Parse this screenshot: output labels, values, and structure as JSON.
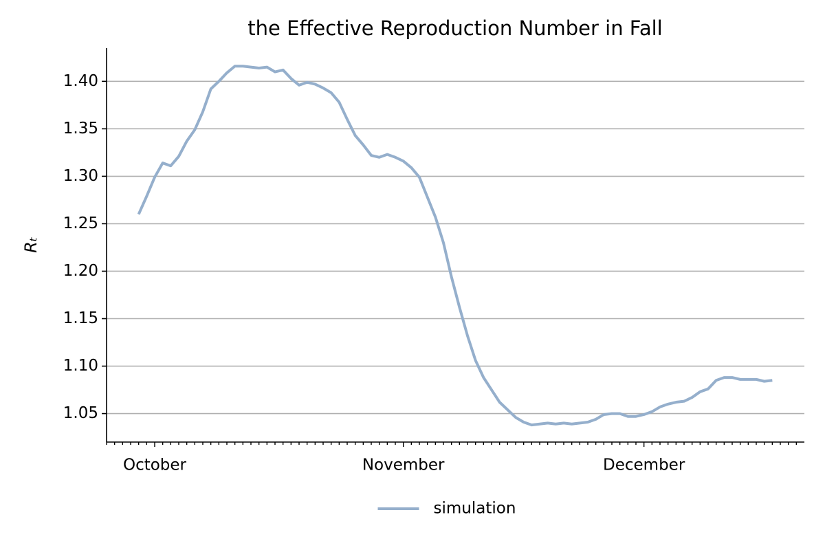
{
  "chart_data": {
    "type": "line",
    "title": "the Effective Reproduction Number in Fall",
    "y_label": "Rₜ",
    "categories": [
      null,
      null,
      null,
      null,
      null,
      null,
      "October",
      null,
      null,
      null,
      null,
      null,
      null,
      null,
      null,
      null,
      null,
      null,
      null,
      null,
      null,
      null,
      null,
      null,
      null,
      null,
      null,
      null,
      null,
      null,
      null,
      null,
      null,
      null,
      null,
      null,
      null,
      "November",
      null,
      null,
      null,
      null,
      null,
      null,
      null,
      null,
      null,
      null,
      null,
      null,
      null,
      null,
      null,
      null,
      null,
      null,
      null,
      null,
      null,
      null,
      null,
      null,
      null,
      null,
      null,
      null,
      null,
      "December",
      null,
      null,
      null,
      null,
      null,
      null,
      null,
      null,
      null,
      null,
      null,
      null,
      null,
      null,
      null,
      null,
      null,
      null,
      null
    ],
    "series": [
      {
        "name": "simulation",
        "color": "#95afcc",
        "values": [
          null,
          null,
          null,
          null,
          1.26,
          1.279,
          1.299,
          1.314,
          1.311,
          1.321,
          1.337,
          1.349,
          1.368,
          1.392,
          1.4,
          1.409,
          1.416,
          1.416,
          1.415,
          1.414,
          1.415,
          1.41,
          1.412,
          1.403,
          1.396,
          1.399,
          1.397,
          1.393,
          1.388,
          1.378,
          1.36,
          1.343,
          1.333,
          1.322,
          1.32,
          1.323,
          1.32,
          1.316,
          1.309,
          1.299,
          1.278,
          1.257,
          1.23,
          1.194,
          1.162,
          1.132,
          1.106,
          1.088,
          1.075,
          1.062,
          1.054,
          1.046,
          1.041,
          1.038,
          1.039,
          1.04,
          1.039,
          1.04,
          1.039,
          1.04,
          1.041,
          1.044,
          1.049,
          1.05,
          1.05,
          1.047,
          1.047,
          1.049,
          1.052,
          1.057,
          1.06,
          1.062,
          1.063,
          1.067,
          1.073,
          1.076,
          1.085,
          1.088,
          1.088,
          1.086,
          1.086,
          1.086,
          1.084,
          1.085,
          null,
          null,
          null
        ]
      }
    ],
    "ylim": [
      1.02,
      1.435
    ],
    "yticks": [
      {
        "value": 1.05,
        "label": "1.05"
      },
      {
        "value": 1.1,
        "label": "1.10"
      },
      {
        "value": 1.15,
        "label": "1.15"
      },
      {
        "value": 1.2,
        "label": "1.20"
      },
      {
        "value": 1.25,
        "label": "1.25"
      },
      {
        "value": 1.3,
        "label": "1.30"
      },
      {
        "value": 1.35,
        "label": "1.35"
      },
      {
        "value": 1.4,
        "label": "1.40"
      }
    ],
    "grid": true,
    "legend": "bottom"
  }
}
